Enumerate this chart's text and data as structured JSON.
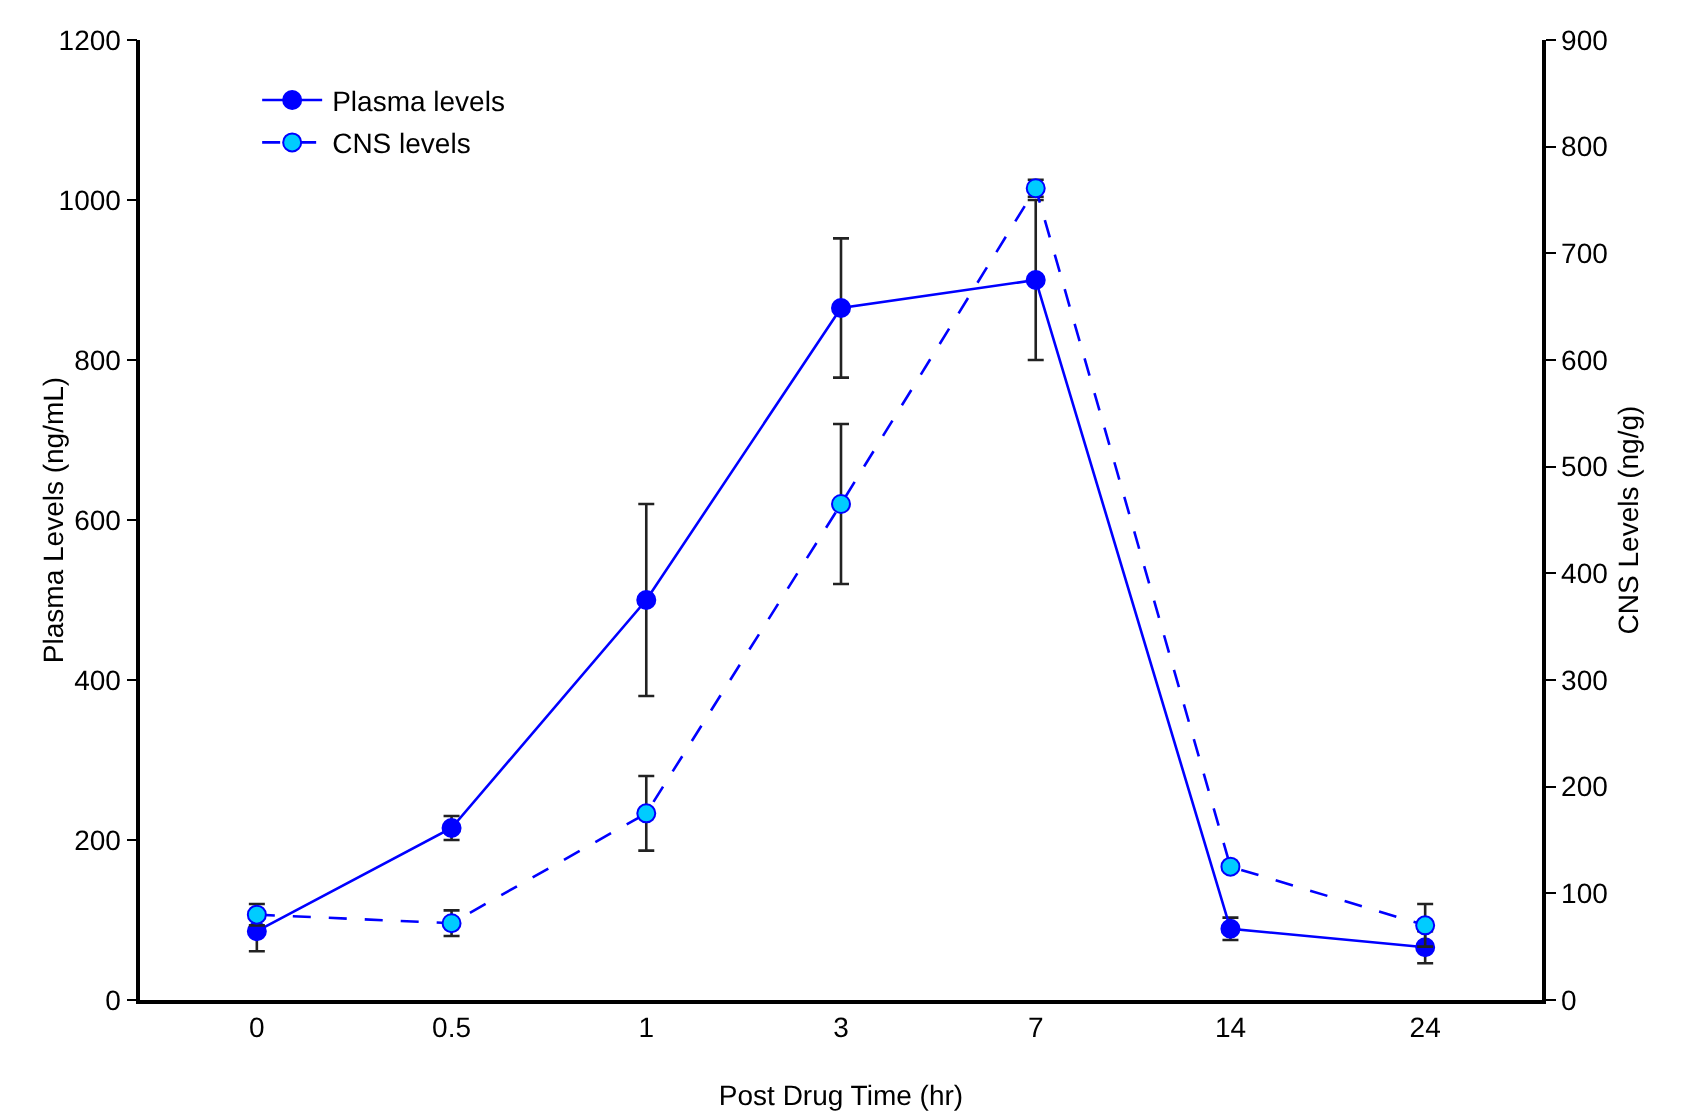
{
  "chart_data": {
    "type": "line",
    "xlabel": "Post Drug Time (hr)",
    "ylabel": "Plasma Levels (ng/mL)",
    "y2label": "CNS Levels (ng/g)",
    "categories": [
      "0",
      "0.5",
      "1",
      "3",
      "7",
      "14",
      "24"
    ],
    "series": [
      {
        "name": "Plasma levels",
        "color": "#0000ff",
        "values": [
          86,
          215,
          500,
          865,
          900,
          89,
          66
        ],
        "errors": [
          25,
          15,
          120,
          87,
          100,
          14,
          20
        ],
        "line_style": "solid"
      },
      {
        "name": "CNS levels",
        "color": "#00ccff",
        "axis": "y2",
        "values": [
          80,
          72,
          175,
          465,
          761,
          125,
          70
        ],
        "errors": [
          10,
          12,
          35,
          75,
          8,
          null,
          20
        ],
        "line_style": "dashed"
      }
    ],
    "ylim": [
      0,
      1200
    ],
    "yticks": [
      0,
      200,
      400,
      600,
      800,
      1000,
      1200
    ],
    "y2lim": [
      0,
      900
    ],
    "y2ticks": [
      0,
      100,
      200,
      300,
      400,
      500,
      600,
      700,
      800,
      900
    ],
    "marker": "circle",
    "grid": false,
    "legend": "top left"
  }
}
